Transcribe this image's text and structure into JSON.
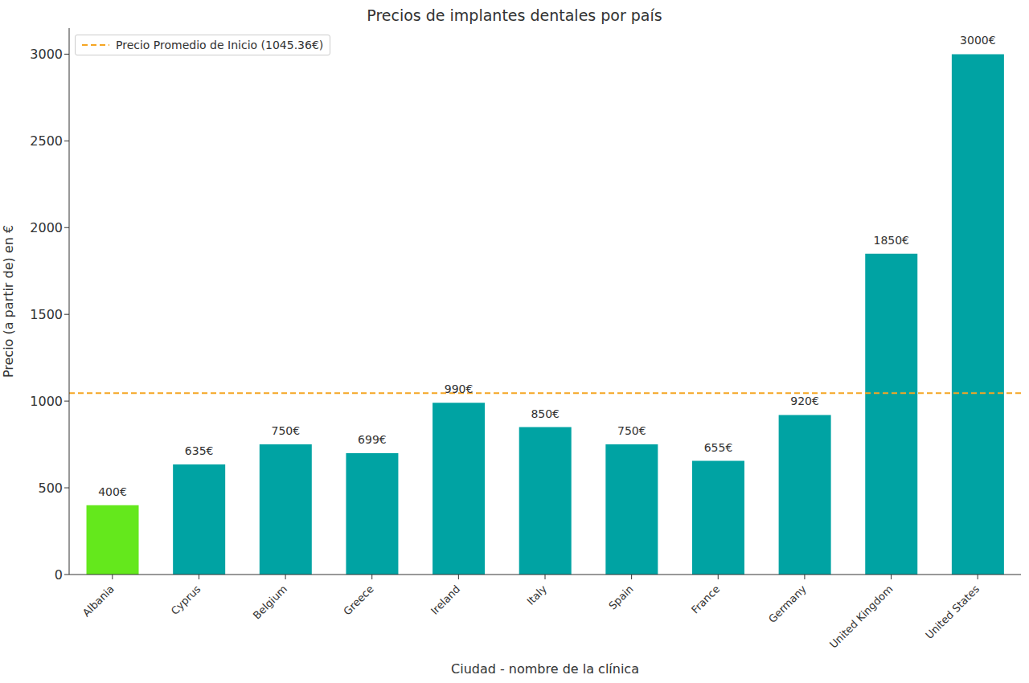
{
  "chart_data": {
    "type": "bar",
    "title": "Precios de implantes dentales por país",
    "x_label": "Ciudad - nombre de la clínica",
    "y_label": "Precio (a partir de) en €",
    "categories": [
      "Albania",
      "Cyprus",
      "Belgium",
      "Greece",
      "Ireland",
      "Italy",
      "Spain",
      "France",
      "Germany",
      "United Kingdom",
      "United States"
    ],
    "values": [
      400,
      635,
      750,
      699,
      990,
      850,
      750,
      655,
      920,
      1850,
      3000
    ],
    "value_labels": [
      "400€",
      "635€",
      "750€",
      "699€",
      "990€",
      "850€",
      "750€",
      "655€",
      "920€",
      "1850€",
      "3000€"
    ],
    "data_labels": true,
    "colors": [
      "#64e81c",
      "#00a3a3",
      "#00a3a3",
      "#00a3a3",
      "#00a3a3",
      "#00a3a3",
      "#00a3a3",
      "#00a3a3",
      "#00a3a3",
      "#00a3a3",
      "#00a3a3"
    ],
    "ylim": [
      0,
      3150
    ],
    "yticks": [
      0,
      500,
      1000,
      1500,
      2000,
      2500,
      3000
    ],
    "grid": false,
    "legend": "upper left",
    "reference_line": {
      "value": 1045.36,
      "label": "Precio Promedio de Inicio (1045.36€)",
      "color": "#f5a623",
      "line_style": "dashed"
    }
  }
}
